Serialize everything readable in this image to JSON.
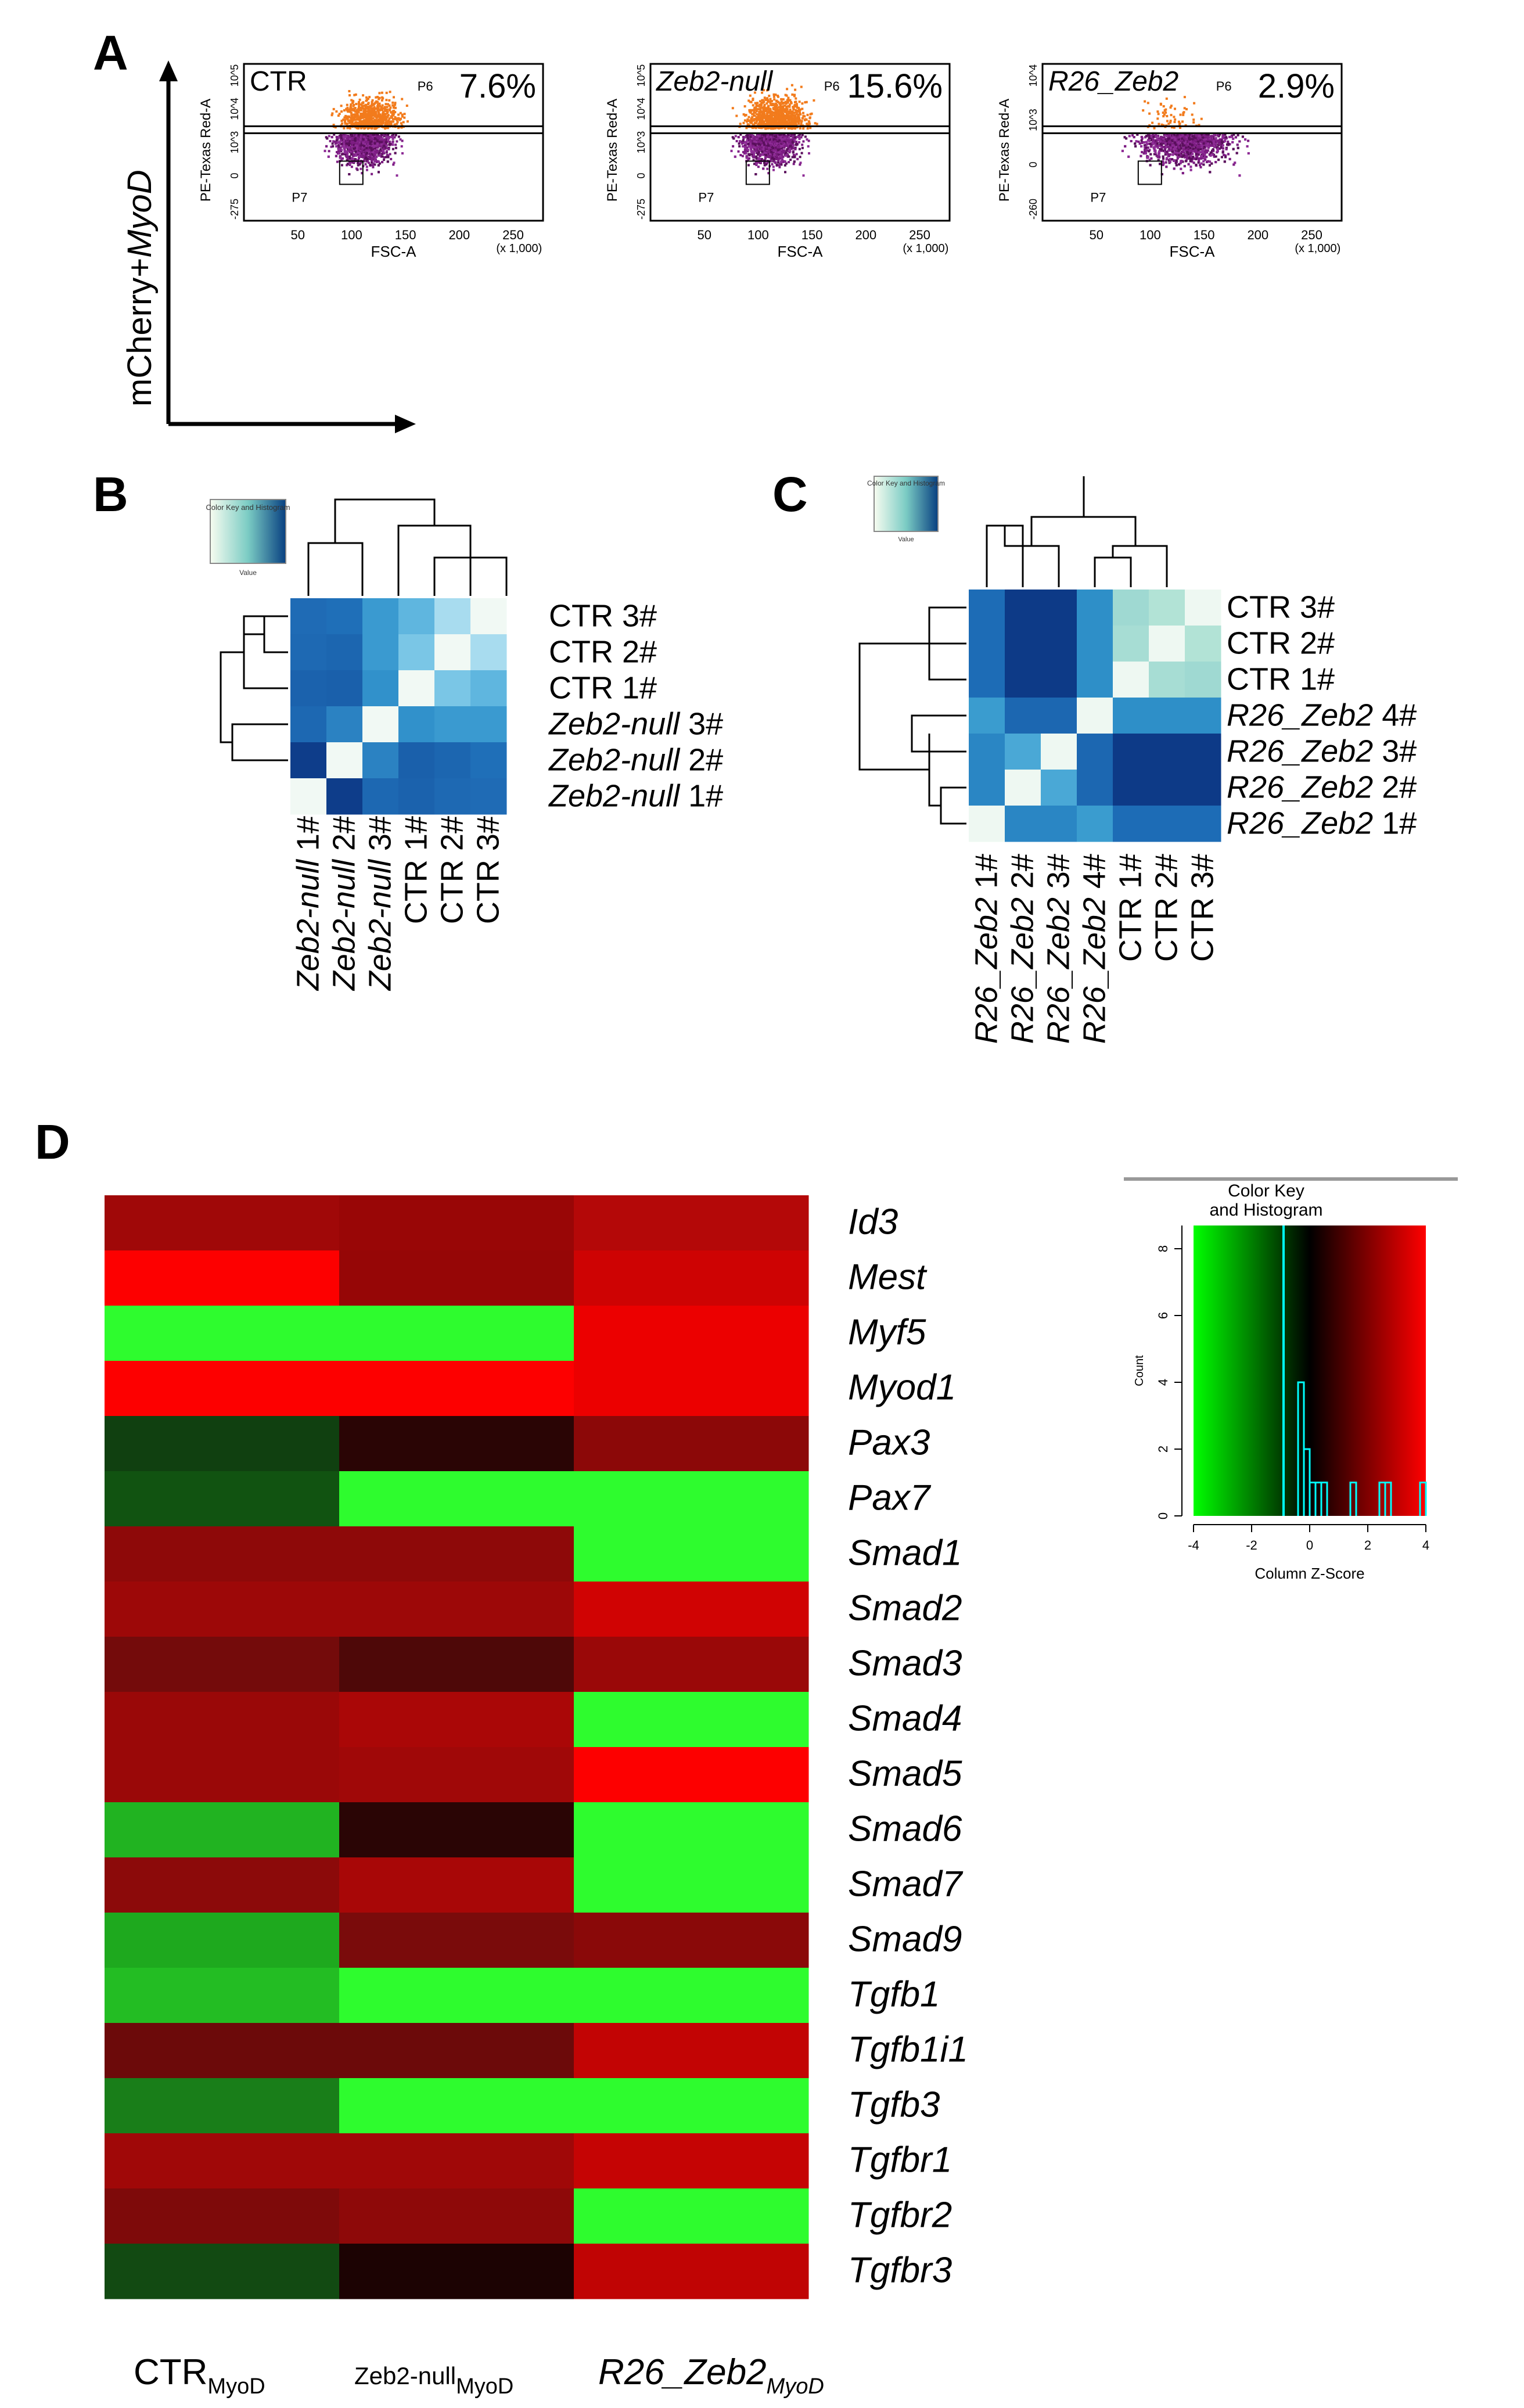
{
  "panel_labels": {
    "a": "A",
    "b": "B",
    "c": "C",
    "d": "D"
  },
  "panel_a": {
    "y_axis_label_prefix": "mCherry+",
    "y_axis_label_gene": "MyoD",
    "plots": [
      {
        "label": "CTR",
        "italic": false,
        "percent": "7.6%",
        "gate_high": "P6",
        "gate_low": "P7",
        "ylabel": "PE-Texas Red-A",
        "xlabel": "FSC-A",
        "xscale": "(x 1,000)",
        "yticks": [
          "10^5",
          "10^4",
          "10^3",
          "0",
          "-275"
        ],
        "xticks": [
          "50",
          "100",
          "150",
          "200",
          "250"
        ]
      },
      {
        "label": "Zeb2-null",
        "italic": true,
        "percent": "15.6%",
        "gate_high": "P6",
        "gate_low": "P7",
        "ylabel": "PE-Texas Red-A",
        "xlabel": "FSC-A",
        "xscale": "(x 1,000)",
        "yticks": [
          "10^5",
          "10^4",
          "10^3",
          "0",
          "-275"
        ],
        "xticks": [
          "50",
          "100",
          "150",
          "200",
          "250"
        ]
      },
      {
        "label": "R26_Zeb2",
        "italic": true,
        "percent": "2.9%",
        "gate_high": "P6",
        "gate_low": "P7",
        "ylabel": "PE-Texas Red-A",
        "xlabel": "FSC-A",
        "xscale": "(x 1,000)",
        "yticks": [
          "10^4",
          "10^3",
          "0",
          "-260"
        ],
        "xticks": [
          "50",
          "100",
          "150",
          "200",
          "250"
        ]
      }
    ]
  },
  "panel_b": {
    "type": "heatmap",
    "color_key_title": "Color Key and Histogram",
    "color_key_xlabel": "Value",
    "rows": [
      {
        "label": "CTR 3#",
        "prefix": "CTR",
        "suffix": "3#",
        "italic": false
      },
      {
        "label": "CTR 2#",
        "prefix": "CTR",
        "suffix": "2#",
        "italic": false
      },
      {
        "label": "CTR 1#",
        "prefix": "CTR",
        "suffix": "1#",
        "italic": false
      },
      {
        "label": "Zeb2-null 3#",
        "prefix": "Zeb2-null",
        "suffix": "3#",
        "italic": true
      },
      {
        "label": "Zeb2-null 2#",
        "prefix": "Zeb2-null",
        "suffix": "2#",
        "italic": true
      },
      {
        "label": "Zeb2-null 1#",
        "prefix": "Zeb2-null",
        "suffix": "1#",
        "italic": true
      }
    ],
    "cols": [
      {
        "prefix": "Zeb2-null",
        "suffix": "1#",
        "italic": true
      },
      {
        "prefix": "Zeb2-null",
        "suffix": "2#",
        "italic": true
      },
      {
        "prefix": "Zeb2-null",
        "suffix": "3#",
        "italic": true
      },
      {
        "prefix": "CTR",
        "suffix": "1#",
        "italic": false
      },
      {
        "prefix": "CTR",
        "suffix": "2#",
        "italic": false
      },
      {
        "prefix": "CTR",
        "suffix": "3#",
        "italic": false
      }
    ],
    "colors": [
      [
        "#1f6bb5",
        "#1f6fb8",
        "#3a9ad0",
        "#5fb6df",
        "#a8dcef",
        "#f1f9f4"
      ],
      [
        "#1e69b3",
        "#1c66b0",
        "#3a9ad0",
        "#7ac6e6",
        "#f1f9f4",
        "#a8dcef"
      ],
      [
        "#1b62ad",
        "#1a60ab",
        "#3191cb",
        "#f1f9f4",
        "#7ac6e6",
        "#5fb6df"
      ],
      [
        "#1d68b2",
        "#2b82c2",
        "#f1f9f4",
        "#3191cb",
        "#3a9ad0",
        "#3a9ad0"
      ],
      [
        "#0e3d8a",
        "#f1f9f4",
        "#2b82c2",
        "#1a60ab",
        "#1c66b0",
        "#1f6fb8"
      ],
      [
        "#f1f9f4",
        "#0e3d8a",
        "#1d68b2",
        "#1b62ad",
        "#1e69b3",
        "#1f6bb5"
      ]
    ]
  },
  "panel_c": {
    "type": "heatmap",
    "color_key_title": "Color Key and Histogram",
    "color_key_xlabel": "Value",
    "rows": [
      {
        "label": "CTR 3#",
        "prefix": "CTR",
        "suffix": "3#",
        "italic": false
      },
      {
        "label": "CTR 2#",
        "prefix": "CTR",
        "suffix": "2#",
        "italic": false
      },
      {
        "label": "CTR 1#",
        "prefix": "CTR",
        "suffix": "1#",
        "italic": false
      },
      {
        "label": "R26_Zeb2 4#",
        "prefix": "R26_Zeb2",
        "suffix": "4#",
        "italic": true
      },
      {
        "label": "R26_Zeb2 3#",
        "prefix": "R26_Zeb2",
        "suffix": "3#",
        "italic": true
      },
      {
        "label": "R26_Zeb2 2#",
        "prefix": "R26_Zeb2",
        "suffix": "2#",
        "italic": true
      },
      {
        "label": "R26_Zeb2 1#",
        "prefix": "R26_Zeb2",
        "suffix": "1#",
        "italic": true
      }
    ],
    "cols": [
      {
        "prefix": "R26_Zeb2",
        "suffix": "1#",
        "italic": true
      },
      {
        "prefix": "R26_Zeb2",
        "suffix": "2#",
        "italic": true
      },
      {
        "prefix": "R26_Zeb2",
        "suffix": "3#",
        "italic": true
      },
      {
        "prefix": "R26_Zeb2",
        "suffix": "4#",
        "italic": true
      },
      {
        "prefix": "CTR",
        "suffix": "1#",
        "italic": false
      },
      {
        "prefix": "CTR",
        "suffix": "2#",
        "italic": false
      },
      {
        "prefix": "CTR",
        "suffix": "3#",
        "italic": false
      }
    ],
    "colors": [
      [
        "#1d6cb6",
        "#0d3a87",
        "#0d3a87",
        "#2e8fc8",
        "#9fd9d2",
        "#b2e3d6",
        "#eef8f2"
      ],
      [
        "#1d6cb6",
        "#0d3a87",
        "#0d3a87",
        "#2e8fc8",
        "#a7ddd4",
        "#eef8f2",
        "#b2e3d6"
      ],
      [
        "#1d6cb6",
        "#0d3a87",
        "#0d3a87",
        "#2e8fc8",
        "#eef8f2",
        "#a7ddd4",
        "#9fd9d2"
      ],
      [
        "#3a9ccf",
        "#1c67b1",
        "#1c67b1",
        "#eef8f2",
        "#2e8fc8",
        "#2e8fc8",
        "#2e8fc8"
      ],
      [
        "#2a86c4",
        "#4aa8d6",
        "#eef8f2",
        "#1c67b1",
        "#0d3a87",
        "#0d3a87",
        "#0d3a87"
      ],
      [
        "#2a86c4",
        "#eef8f2",
        "#4aa8d6",
        "#1c67b1",
        "#0d3a87",
        "#0d3a87",
        "#0d3a87"
      ],
      [
        "#eef8f2",
        "#2a86c4",
        "#2a86c4",
        "#3a9ccf",
        "#1d6cb6",
        "#1d6cb6",
        "#1d6cb6"
      ]
    ]
  },
  "panel_d": {
    "type": "heatmap",
    "genes": [
      "Id3",
      "Mest",
      "Myf5",
      "Myod1",
      "Pax3",
      "Pax7",
      "Smad1",
      "Smad2",
      "Smad3",
      "Smad4",
      "Smad5",
      "Smad6",
      "Smad7",
      "Smad9",
      "Tgfb1",
      "Tgfb1i1",
      "Tgfb3",
      "Tgfbr1",
      "Tgfbr2",
      "Tgfbr3"
    ],
    "columns": [
      {
        "main": "CTR",
        "sub": "MyoD",
        "italic": false
      },
      {
        "main": "Zeb2-null",
        "sub": "MyoD",
        "italic": false
      },
      {
        "main": "R26_Zeb2",
        "sub": "MyoD",
        "italic": true
      }
    ],
    "colors": [
      [
        "#a00808",
        "#990606",
        "#b40808"
      ],
      [
        "#fd0000",
        "#960606",
        "#ce0303"
      ],
      [
        "#2efc2e",
        "#2efc2e",
        "#ec0000"
      ],
      [
        "#fd0000",
        "#fd0000",
        "#ec0000"
      ],
      [
        "#104010",
        "#2a0505",
        "#8c0808"
      ],
      [
        "#115311",
        "#2efc2e",
        "#2efc2e"
      ],
      [
        "#8e0909",
        "#8e0909",
        "#2efc2e"
      ],
      [
        "#9d0808",
        "#9d0808",
        "#d00303"
      ],
      [
        "#740b0b",
        "#4e0808",
        "#9a0808"
      ],
      [
        "#9a0808",
        "#aa0707",
        "#2efc2e"
      ],
      [
        "#9a0808",
        "#a00808",
        "#fd0000"
      ],
      [
        "#21b321",
        "#2a0505",
        "#2efc2e"
      ],
      [
        "#8c0a0a",
        "#a80707",
        "#2efc2e"
      ],
      [
        "#1ea91e",
        "#7a0b0b",
        "#8a0909"
      ],
      [
        "#23bd23",
        "#2efc2e",
        "#2efc2e"
      ],
      [
        "#6c0a0a",
        "#6c0a0a",
        "#c20404"
      ],
      [
        "#197e19",
        "#2efc2e",
        "#2efc2e"
      ],
      [
        "#a00808",
        "#a00808",
        "#c50404"
      ],
      [
        "#7e0a0a",
        "#8e0909",
        "#2efc2e"
      ],
      [
        "#124a12",
        "#1c0303",
        "#c00404"
      ]
    ],
    "color_key": {
      "title_line1": "Color Key",
      "title_line2": "and Histogram",
      "xlabel": "Column Z-Score",
      "ylabel": "Count",
      "xticks": [
        "-4",
        "-2",
        "0",
        "2",
        "4"
      ],
      "yticks": [
        "0",
        "2",
        "4",
        "6",
        "8"
      ],
      "xlim": [
        -4,
        4
      ],
      "ylim": [
        0,
        8
      ],
      "low_color": "#00ff00",
      "mid_color": "#000000",
      "high_color": "#ff0000",
      "hist_color": "#00ffff"
    }
  }
}
